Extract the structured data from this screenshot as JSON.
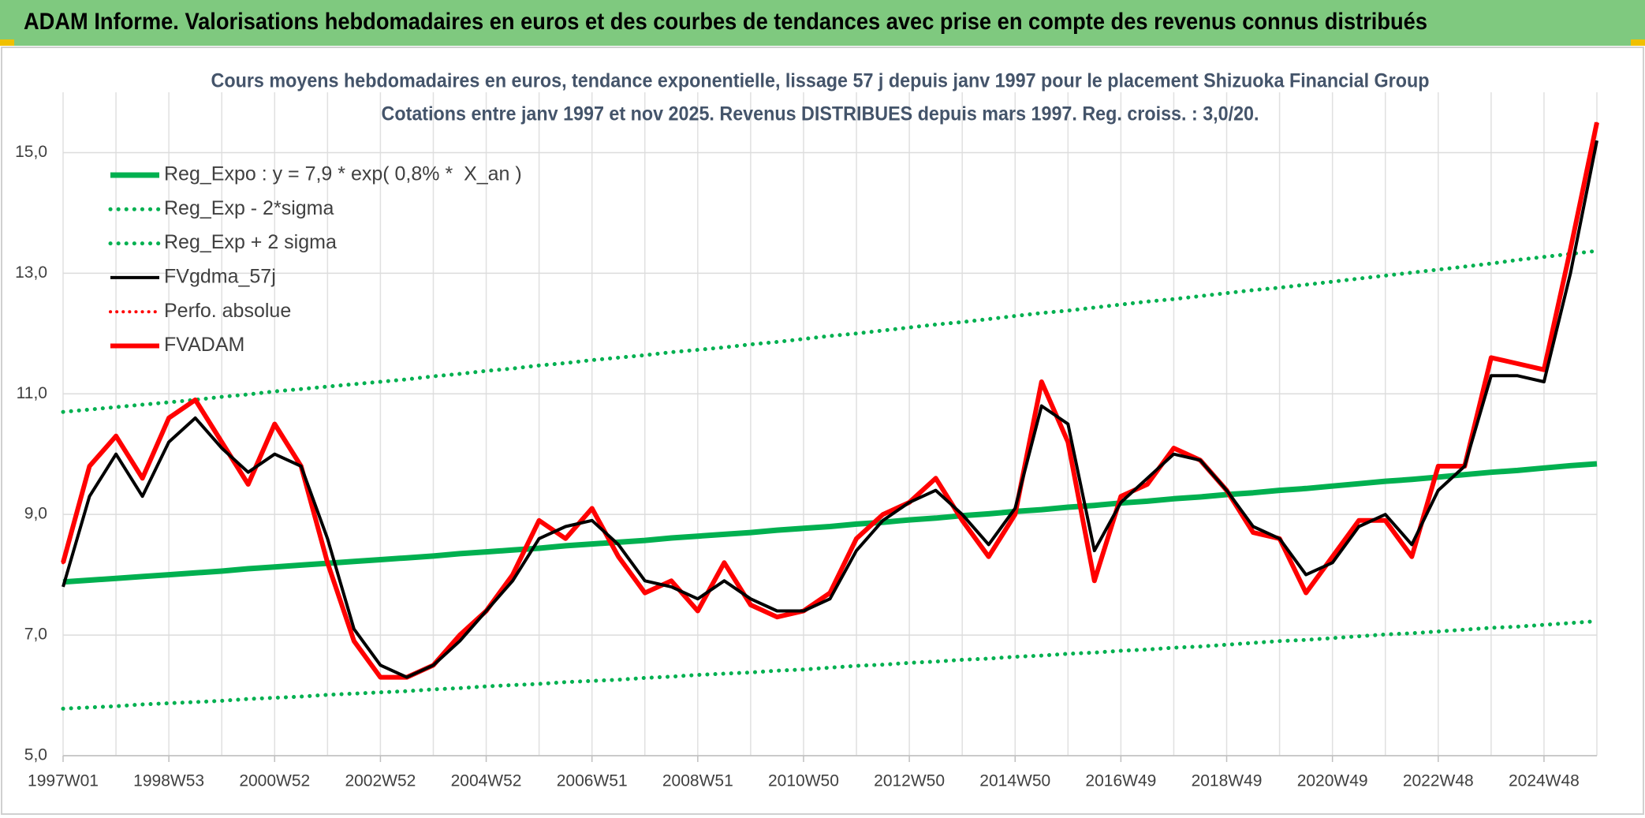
{
  "chart_data": {
    "type": "line",
    "header": "ADAM Informe. Valorisations hebdomadaires en euros et des courbes de tendances avec prise en compte des revenus connus distribués",
    "title": "Cours moyens hebdomadaires en euros, tendance exponentielle, lissage 57 j depuis janv 1997 pour le placement Shizuoka Financial Group",
    "subtitle": "Cotations entre janv 1997 et nov 2025. Revenus DISTRIBUES depuis mars 1997. Reg. croiss. : 3,0/20.",
    "categories": [
      "1997W01",
      null,
      null,
      null,
      "1998W53",
      null,
      null,
      null,
      "2000W52",
      null,
      null,
      null,
      "2002W52",
      null,
      null,
      null,
      "2004W52",
      null,
      null,
      null,
      "2006W51",
      null,
      null,
      null,
      "2008W51",
      null,
      null,
      null,
      "2010W50",
      null,
      null,
      null,
      "2012W50",
      null,
      null,
      null,
      "2014W50",
      null,
      null,
      null,
      "2016W49",
      null,
      null,
      null,
      "2018W49",
      null,
      null,
      null,
      "2020W49",
      null,
      null,
      null,
      "2022W48",
      null,
      null,
      null,
      "2024W48",
      null,
      null
    ],
    "ylim": [
      5,
      16
    ],
    "yticks": [
      {
        "value": 5,
        "label": "5,0"
      },
      {
        "value": 7,
        "label": "7,0"
      },
      {
        "value": 9,
        "label": "9,0"
      },
      {
        "value": 11,
        "label": "11,0"
      },
      {
        "value": 13,
        "label": "13,0"
      },
      {
        "value": 15,
        "label": "15,0"
      }
    ],
    "grid": true,
    "legend": "upper left",
    "series": [
      {
        "name": "Reg_Expo : y = 7,9 * exp( 0,8% *  X_an )",
        "color": "#00b050",
        "style": "solid",
        "width": 7,
        "values": [
          7.88,
          7.91,
          7.94,
          7.97,
          8.0,
          8.03,
          8.06,
          8.1,
          8.13,
          8.16,
          8.19,
          8.22,
          8.25,
          8.28,
          8.31,
          8.35,
          8.38,
          8.41,
          8.44,
          8.48,
          8.51,
          8.54,
          8.57,
          8.61,
          8.64,
          8.67,
          8.7,
          8.74,
          8.77,
          8.8,
          8.84,
          8.87,
          8.91,
          8.94,
          8.98,
          9.01,
          9.05,
          9.08,
          9.12,
          9.15,
          9.19,
          9.22,
          9.26,
          9.29,
          9.33,
          9.36,
          9.4,
          9.43,
          9.47,
          9.51,
          9.55,
          9.58,
          9.62,
          9.66,
          9.7,
          9.73,
          9.77,
          9.81,
          9.84
        ]
      },
      {
        "name": "Reg_Exp - 2*sigma",
        "color": "#00b050",
        "style": "dotted",
        "width": 5,
        "values": [
          5.78,
          5.8,
          5.82,
          5.85,
          5.87,
          5.89,
          5.91,
          5.94,
          5.96,
          5.98,
          6.01,
          6.03,
          6.05,
          6.07,
          6.1,
          6.12,
          6.15,
          6.17,
          6.19,
          6.22,
          6.24,
          6.26,
          6.29,
          6.31,
          6.34,
          6.36,
          6.38,
          6.41,
          6.43,
          6.46,
          6.49,
          6.51,
          6.54,
          6.56,
          6.59,
          6.61,
          6.64,
          6.66,
          6.69,
          6.71,
          6.74,
          6.76,
          6.79,
          6.81,
          6.84,
          6.87,
          6.9,
          6.92,
          6.95,
          6.98,
          7.01,
          7.03,
          7.06,
          7.09,
          7.12,
          7.14,
          7.17,
          7.2,
          7.23
        ]
      },
      {
        "name": "Reg_Exp + 2 sigma",
        "color": "#00b050",
        "style": "dotted",
        "width": 5,
        "values": [
          10.7,
          10.74,
          10.78,
          10.82,
          10.86,
          10.9,
          10.95,
          10.99,
          11.04,
          11.08,
          11.12,
          11.16,
          11.2,
          11.24,
          11.29,
          11.33,
          11.38,
          11.42,
          11.47,
          11.51,
          11.56,
          11.6,
          11.64,
          11.69,
          11.73,
          11.77,
          11.82,
          11.86,
          11.91,
          11.96,
          12.0,
          12.05,
          12.1,
          12.15,
          12.19,
          12.24,
          12.29,
          12.34,
          12.38,
          12.43,
          12.48,
          12.53,
          12.57,
          12.62,
          12.67,
          12.72,
          12.76,
          12.81,
          12.86,
          12.91,
          12.96,
          13.01,
          13.06,
          13.11,
          13.16,
          13.22,
          13.27,
          13.32,
          13.37
        ]
      },
      {
        "name": "FVgdma_57j",
        "color": "#000000",
        "style": "solid",
        "width": 4,
        "values": [
          7.8,
          9.3,
          10.0,
          9.3,
          10.2,
          10.6,
          10.1,
          9.7,
          10.0,
          9.8,
          8.6,
          7.1,
          6.5,
          6.3,
          6.5,
          6.9,
          7.4,
          7.9,
          8.6,
          8.8,
          8.9,
          8.5,
          7.9,
          7.8,
          7.6,
          7.9,
          7.6,
          7.4,
          7.4,
          7.6,
          8.4,
          8.9,
          9.2,
          9.4,
          9.0,
          8.5,
          9.1,
          10.8,
          10.5,
          8.4,
          9.2,
          9.6,
          10.0,
          9.9,
          9.4,
          8.8,
          8.6,
          8.0,
          8.2,
          8.8,
          9.0,
          8.5,
          9.4,
          9.8,
          11.3,
          11.3,
          11.2,
          13.0,
          15.2
        ]
      },
      {
        "name": "Perfo. absolue",
        "color": "#ff0000",
        "style": "dotted",
        "width": 4,
        "values": [
          8.2,
          9.8,
          10.3,
          9.6,
          10.6,
          10.9,
          10.2,
          9.5,
          10.5,
          9.8,
          8.2,
          6.9,
          6.3,
          6.3,
          6.5,
          7.0,
          7.4,
          8.0,
          8.9,
          8.6,
          9.1,
          8.3,
          7.7,
          7.9,
          7.4,
          8.2,
          7.5,
          7.3,
          7.4,
          7.7,
          8.6,
          9.0,
          9.2,
          9.6,
          8.9,
          8.3,
          9.0,
          11.2,
          10.2,
          7.9,
          9.3,
          9.5,
          10.1,
          9.9,
          9.4,
          8.7,
          8.6,
          7.7,
          8.3,
          8.9,
          8.9,
          8.3,
          9.8,
          9.8,
          11.6,
          11.5,
          11.4,
          13.4,
          15.5
        ]
      },
      {
        "name": "FVADAM",
        "color": "#ff0000",
        "style": "solid",
        "width": 6,
        "values": [
          8.2,
          9.8,
          10.3,
          9.6,
          10.6,
          10.9,
          10.2,
          9.5,
          10.5,
          9.8,
          8.2,
          6.9,
          6.3,
          6.3,
          6.5,
          7.0,
          7.4,
          8.0,
          8.9,
          8.6,
          9.1,
          8.3,
          7.7,
          7.9,
          7.4,
          8.2,
          7.5,
          7.3,
          7.4,
          7.7,
          8.6,
          9.0,
          9.2,
          9.6,
          8.9,
          8.3,
          9.0,
          11.2,
          10.2,
          7.9,
          9.3,
          9.5,
          10.1,
          9.9,
          9.4,
          8.7,
          8.6,
          7.7,
          8.3,
          8.9,
          8.9,
          8.3,
          9.8,
          9.8,
          11.6,
          11.5,
          11.4,
          13.4,
          15.5
        ]
      }
    ]
  }
}
